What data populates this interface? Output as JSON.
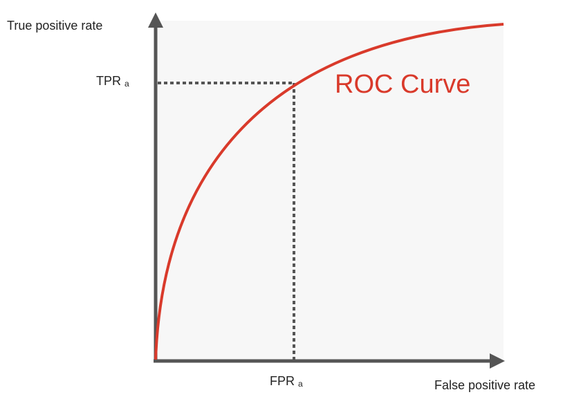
{
  "y_axis": {
    "label": "True positive rate"
  },
  "x_axis": {
    "label": "False positive rate"
  },
  "tpr_marker": {
    "main": "TPR",
    "sub": "a"
  },
  "fpr_marker": {
    "main": "FPR",
    "sub": "a"
  },
  "curve": {
    "label": "ROC Curve"
  }
}
